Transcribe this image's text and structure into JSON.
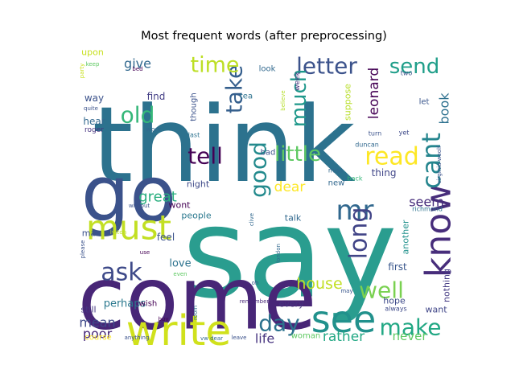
{
  "chart_data": {
    "type": "wordcloud",
    "title": "Most frequent words (after preprocessing)",
    "colormap": "viridis",
    "background": "#ffffff",
    "axes_visible": false,
    "words": [
      {
        "text": "say",
        "weight": 1.0,
        "color": "#2a9d8f"
      },
      {
        "text": "think",
        "weight": 0.92,
        "color": "#2c728e"
      },
      {
        "text": "come",
        "weight": 0.86,
        "color": "#482677"
      },
      {
        "text": "go",
        "weight": 0.62,
        "color": "#3b528b"
      },
      {
        "text": "know",
        "weight": 0.5,
        "color": "#472d7b"
      },
      {
        "text": "write",
        "weight": 0.5,
        "color": "#d0e11c"
      },
      {
        "text": "see",
        "weight": 0.46,
        "color": "#21918c"
      },
      {
        "text": "must",
        "weight": 0.44,
        "color": "#c2df23"
      },
      {
        "text": "cant",
        "weight": 0.34,
        "color": "#25858e"
      },
      {
        "text": "mr",
        "weight": 0.32,
        "color": "#31688e"
      },
      {
        "text": "long",
        "weight": 0.3,
        "color": "#414487"
      },
      {
        "text": "read",
        "weight": 0.32,
        "color": "#fde725"
      },
      {
        "text": "little",
        "weight": 0.3,
        "color": "#5ec962"
      },
      {
        "text": "make",
        "weight": 0.3,
        "color": "#22a884"
      },
      {
        "text": "ask",
        "weight": 0.3,
        "color": "#3e4a89"
      },
      {
        "text": "well",
        "weight": 0.3,
        "color": "#7ad151"
      },
      {
        "text": "tell",
        "weight": 0.28,
        "color": "#440154"
      },
      {
        "text": "letter",
        "weight": 0.28,
        "color": "#3b528b"
      },
      {
        "text": "send",
        "weight": 0.27,
        "color": "#1f9e89"
      },
      {
        "text": "take",
        "weight": 0.26,
        "color": "#355f8d"
      },
      {
        "text": "good",
        "weight": 0.26,
        "color": "#238a8d"
      },
      {
        "text": "day",
        "weight": 0.26,
        "color": "#2c728e"
      },
      {
        "text": "old",
        "weight": 0.26,
        "color": "#35b779"
      },
      {
        "text": "time",
        "weight": 0.25,
        "color": "#bddf26"
      },
      {
        "text": "much",
        "weight": 0.24,
        "color": "#1f988b"
      },
      {
        "text": "great",
        "weight": 0.2,
        "color": "#29af7f"
      },
      {
        "text": "house",
        "weight": 0.2,
        "color": "#c2df23"
      },
      {
        "text": "dear",
        "weight": 0.18,
        "color": "#fde725"
      },
      {
        "text": "mean",
        "weight": 0.17,
        "color": "#3e4a89"
      },
      {
        "text": "poor",
        "weight": 0.17,
        "color": "#482878"
      },
      {
        "text": "book",
        "weight": 0.17,
        "color": "#2d708e"
      },
      {
        "text": "leonard",
        "weight": 0.16,
        "color": "#440154"
      },
      {
        "text": "give",
        "weight": 0.16,
        "color": "#31688e"
      },
      {
        "text": "rather",
        "weight": 0.16,
        "color": "#22a884"
      },
      {
        "text": "life",
        "weight": 0.16,
        "color": "#46337f"
      },
      {
        "text": "never",
        "weight": 0.16,
        "color": "#5ec962"
      },
      {
        "text": "seem",
        "weight": 0.15,
        "color": "#472d7b"
      },
      {
        "text": "perhaps",
        "weight": 0.13,
        "color": "#2a788e"
      },
      {
        "text": "love",
        "weight": 0.13,
        "color": "#2c728e"
      },
      {
        "text": "nothing",
        "weight": 0.12,
        "color": "#443a83"
      },
      {
        "text": "first",
        "weight": 0.12,
        "color": "#39568c"
      },
      {
        "text": "hope",
        "weight": 0.12,
        "color": "#3e4a89"
      },
      {
        "text": "want",
        "weight": 0.12,
        "color": "#404688"
      },
      {
        "text": "thing",
        "weight": 0.11,
        "color": "#404688"
      },
      {
        "text": "another",
        "weight": 0.11,
        "color": "#21918c"
      },
      {
        "text": "suppose",
        "weight": 0.11,
        "color": "#b8de29"
      },
      {
        "text": "find",
        "weight": 0.11,
        "color": "#433e85"
      },
      {
        "text": "way",
        "weight": 0.11,
        "color": "#3b528b"
      },
      {
        "text": "hear",
        "weight": 0.11,
        "color": "#31688e"
      },
      {
        "text": "night",
        "weight": 0.11,
        "color": "#3e4a89"
      },
      {
        "text": "people",
        "weight": 0.11,
        "color": "#2a788e"
      },
      {
        "text": "wont",
        "weight": 0.1,
        "color": "#440154"
      },
      {
        "text": "feel",
        "weight": 0.11,
        "color": "#3b528b"
      },
      {
        "text": "talk",
        "weight": 0.1,
        "color": "#31688e"
      },
      {
        "text": "man",
        "weight": 0.1,
        "color": "#3b528b"
      },
      {
        "text": "upon",
        "weight": 0.1,
        "color": "#c8e020"
      },
      {
        "text": "every",
        "weight": 0.1,
        "color": "#46337f"
      },
      {
        "text": "still",
        "weight": 0.1,
        "color": "#453581"
      },
      {
        "text": "bad",
        "weight": 0.1,
        "color": "#3b528b"
      },
      {
        "text": "woman",
        "weight": 0.09,
        "color": "#5ec962"
      },
      {
        "text": "wish",
        "weight": 0.09,
        "color": "#440154"
      },
      {
        "text": "new",
        "weight": 0.09,
        "color": "#31688e"
      },
      {
        "text": "let",
        "weight": 0.09,
        "color": "#39568c"
      },
      {
        "text": "look",
        "weight": 0.09,
        "color": "#31688e"
      },
      {
        "text": "though",
        "weight": 0.09,
        "color": "#3b528b"
      },
      {
        "text": "course",
        "weight": 0.09,
        "color": "#fde725"
      },
      {
        "text": "tea",
        "weight": 0.08,
        "color": "#2c728e"
      },
      {
        "text": "week",
        "weight": 0.08,
        "color": "#46337f"
      },
      {
        "text": "roger",
        "weight": 0.07,
        "color": "#46337f"
      },
      {
        "text": "work",
        "weight": 0.07,
        "color": "#31688e"
      },
      {
        "text": "turn",
        "weight": 0.07,
        "color": "#3b528b"
      },
      {
        "text": "yet",
        "weight": 0.07,
        "color": "#3e4a89"
      },
      {
        "text": "last",
        "weight": 0.07,
        "color": "#2c728e"
      },
      {
        "text": "two",
        "weight": 0.07,
        "color": "#3b528b"
      },
      {
        "text": "duncan",
        "weight": 0.07,
        "color": "#31688e"
      },
      {
        "text": "miss",
        "weight": 0.07,
        "color": "#31688e"
      },
      {
        "text": "richmond",
        "weight": 0.07,
        "color": "#2c728e"
      },
      {
        "text": "always",
        "weight": 0.06,
        "color": "#3e4a89"
      },
      {
        "text": "remember",
        "weight": 0.06,
        "color": "#482878"
      },
      {
        "text": "london",
        "weight": 0.06,
        "color": "#31688e"
      },
      {
        "text": "may",
        "weight": 0.06,
        "color": "#39568c"
      },
      {
        "text": "oh",
        "weight": 0.06,
        "color": "#3b528b"
      },
      {
        "text": "even",
        "weight": 0.06,
        "color": "#5ec962"
      },
      {
        "text": "keep",
        "weight": 0.06,
        "color": "#5ec962"
      },
      {
        "text": "bed",
        "weight": 0.06,
        "color": "#440154"
      },
      {
        "text": "quite",
        "weight": 0.06,
        "color": "#3b528b"
      },
      {
        "text": "believe",
        "weight": 0.06,
        "color": "#b5de2b"
      },
      {
        "text": "party",
        "weight": 0.06,
        "color": "#c8e020"
      },
      {
        "text": "back",
        "weight": 0.06,
        "color": "#35b779"
      },
      {
        "text": "virginia woolf",
        "weight": 0.06,
        "color": "#3b528b"
      },
      {
        "text": "without",
        "weight": 0.06,
        "color": "#3b528b"
      },
      {
        "text": "lytton",
        "weight": 0.06,
        "color": "#bddf26"
      },
      {
        "text": "please",
        "weight": 0.06,
        "color": "#3b528b"
      },
      {
        "text": "use",
        "weight": 0.06,
        "color": "#440154"
      },
      {
        "text": "clive",
        "weight": 0.06,
        "color": "#31688e"
      },
      {
        "text": "buy",
        "weight": 0.06,
        "color": "#440154"
      },
      {
        "text": "room",
        "weight": 0.06,
        "color": "#2c728e"
      },
      {
        "text": "leave",
        "weight": 0.06,
        "color": "#3b528b"
      },
      {
        "text": "vw dear",
        "weight": 0.06,
        "color": "#31688e"
      },
      {
        "text": "anything",
        "weight": 0.06,
        "color": "#3b528b"
      }
    ]
  }
}
